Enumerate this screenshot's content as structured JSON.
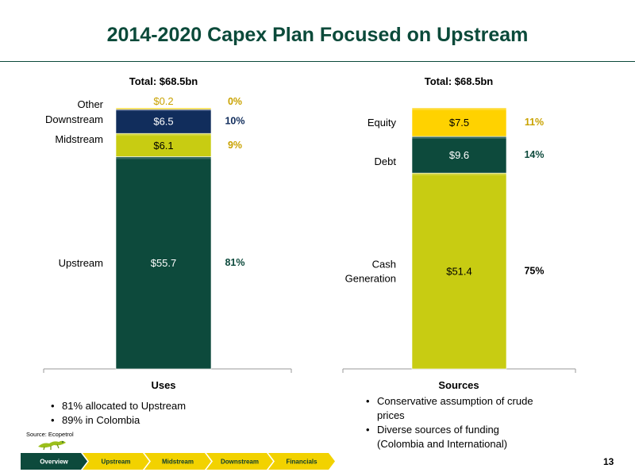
{
  "slide": {
    "title": "2014-2020 Capex Plan Focused on Upstream",
    "source": "Source: Ecopetrol",
    "page_number": "13"
  },
  "colors": {
    "dark_green": "#0d4a3c",
    "navy": "#112d5c",
    "lime": "#c8cc12",
    "gold": "#c9a200",
    "yellow": "#ffd200",
    "nav_active": "#0d4a3c",
    "nav_inactive": "#f2d200"
  },
  "chart_data": [
    {
      "type": "bar",
      "stacked": true,
      "title": "Total: $68.5bn",
      "xlabel": "Uses",
      "categories": [
        "Uses"
      ],
      "ylim": [
        0,
        68.5
      ],
      "series": [
        {
          "name": "Upstream",
          "value": 55.7,
          "value_label": "$55.7",
          "pct_label": "81%",
          "color": "#0d4a3c",
          "text_color": "#ffffff",
          "pct_color": "#0d4a3c"
        },
        {
          "name": "Midstream",
          "value": 6.1,
          "value_label": "$6.1",
          "pct_label": "9%",
          "color": "#c8cc12",
          "text_color": "#000000",
          "pct_color": "#c9a200"
        },
        {
          "name": "Downstream",
          "value": 6.5,
          "value_label": "$6.5",
          "pct_label": "10%",
          "color": "#112d5c",
          "text_color": "#ffffff",
          "pct_color": "#112d5c"
        },
        {
          "name": "Other",
          "value": 0.2,
          "value_label": "$0.2",
          "pct_label": "0%",
          "color": "#ffd200",
          "text_color": "#c9a200",
          "pct_color": "#c9a200"
        }
      ]
    },
    {
      "type": "bar",
      "stacked": true,
      "title": "Total: $68.5bn",
      "xlabel": "Sources",
      "categories": [
        "Sources"
      ],
      "ylim": [
        0,
        68.5
      ],
      "series": [
        {
          "name": "Cash Generation",
          "value": 51.4,
          "value_label": "$51.4",
          "pct_label": "75%",
          "color": "#c8cc12",
          "text_color": "#000000",
          "pct_color": "#000000"
        },
        {
          "name": "Debt",
          "value": 9.6,
          "value_label": "$9.6",
          "pct_label": "14%",
          "color": "#0d4a3c",
          "text_color": "#ffffff",
          "pct_color": "#0d4a3c"
        },
        {
          "name": "Equity",
          "value": 7.5,
          "value_label": "$7.5",
          "pct_label": "11%",
          "color": "#ffd200",
          "text_color": "#000000",
          "pct_color": "#c9a200"
        }
      ]
    }
  ],
  "bullets_left": [
    "81% allocated to Upstream",
    "89% in Colombia"
  ],
  "bullets_right": [
    "Conservative assumption of crude prices",
    "Diverse sources of funding (Colombia and International)"
  ],
  "nav": [
    "Overview",
    "Upstream",
    "Midstream",
    "Downstream",
    "Financials"
  ]
}
